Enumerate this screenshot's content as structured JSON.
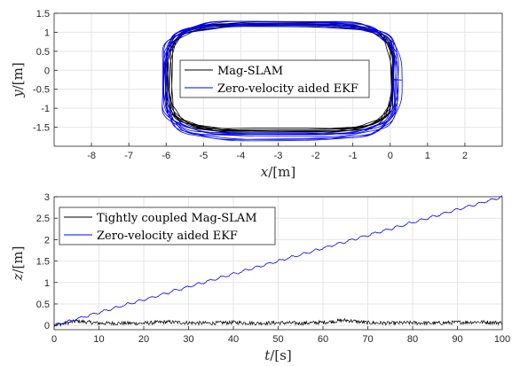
{
  "chart_data": [
    {
      "type": "line",
      "title": "",
      "xlabel": {
        "var": "x",
        "unit": "/[m]"
      },
      "ylabel": {
        "var": "y",
        "unit": "/[m]"
      },
      "xlim": [
        -9,
        3
      ],
      "ylim": [
        -2,
        1.5
      ],
      "xticks": [
        -8,
        -7,
        -6,
        -5,
        -4,
        -3,
        -2,
        -1,
        0,
        1,
        2
      ],
      "yticks": [
        -1.5,
        -1,
        -0.5,
        0,
        0.5,
        1,
        1.5
      ],
      "xtick_labels": [
        "-8",
        "-7",
        "-6",
        "-5",
        "-4",
        "-3",
        "-2",
        "-1",
        "0",
        "1",
        "2"
      ],
      "ytick_labels": [
        "-1.5",
        "-1",
        "-0.5",
        "0",
        "0.5",
        "1",
        "1.5"
      ],
      "grid": true,
      "legend": "center",
      "series": [
        {
          "name": "Mag-SLAM",
          "color": "#000000",
          "shape": "rounded-rectangle-loop",
          "x_extent": [
            -5.95,
            0.05
          ],
          "y_extent": [
            -1.6,
            1.2
          ],
          "laps": 8
        },
        {
          "name": "Zero-velocity aided EKF",
          "color": "#0000ff",
          "shape": "rounded-rectangle-loop",
          "x_extent": [
            -6.05,
            0.15
          ],
          "y_extent": [
            -1.72,
            1.25
          ],
          "laps": 8
        }
      ]
    },
    {
      "type": "line",
      "title": "",
      "xlabel": {
        "var": "t",
        "unit": "/[s]"
      },
      "ylabel": {
        "var": "z",
        "unit": "/[m]"
      },
      "xlim": [
        0,
        100
      ],
      "ylim": [
        -0.1,
        3
      ],
      "xticks": [
        0,
        10,
        20,
        30,
        40,
        50,
        60,
        70,
        80,
        90,
        100
      ],
      "yticks": [
        0,
        0.5,
        1,
        1.5,
        2,
        2.5,
        3
      ],
      "xtick_labels": [
        "0",
        "10",
        "20",
        "30",
        "40",
        "50",
        "60",
        "70",
        "80",
        "90",
        "100"
      ],
      "ytick_labels": [
        "0",
        "0.5",
        "1",
        "1.5",
        "2",
        "2.5",
        "3"
      ],
      "grid": true,
      "legend": "top-left",
      "series": [
        {
          "name": "Tightly coupled Mag-SLAM",
          "color": "#000000",
          "x": [
            0,
            5,
            10,
            15,
            20,
            25,
            30,
            35,
            40,
            45,
            50,
            55,
            60,
            65,
            70,
            75,
            80,
            85,
            90,
            95,
            100
          ],
          "y": [
            0.0,
            0.1,
            0.05,
            0.05,
            0.05,
            0.08,
            0.06,
            0.05,
            0.07,
            0.05,
            0.06,
            0.05,
            0.07,
            0.12,
            0.06,
            0.05,
            0.06,
            0.05,
            0.07,
            0.08,
            0.06
          ]
        },
        {
          "name": "Zero-velocity aided EKF",
          "color": "#0000ff",
          "x": [
            0,
            10,
            20,
            30,
            40,
            50,
            60,
            70,
            80,
            90,
            100
          ],
          "y": [
            0.0,
            0.3,
            0.6,
            0.9,
            1.2,
            1.5,
            1.8,
            2.1,
            2.4,
            2.7,
            3.0
          ]
        }
      ]
    }
  ]
}
